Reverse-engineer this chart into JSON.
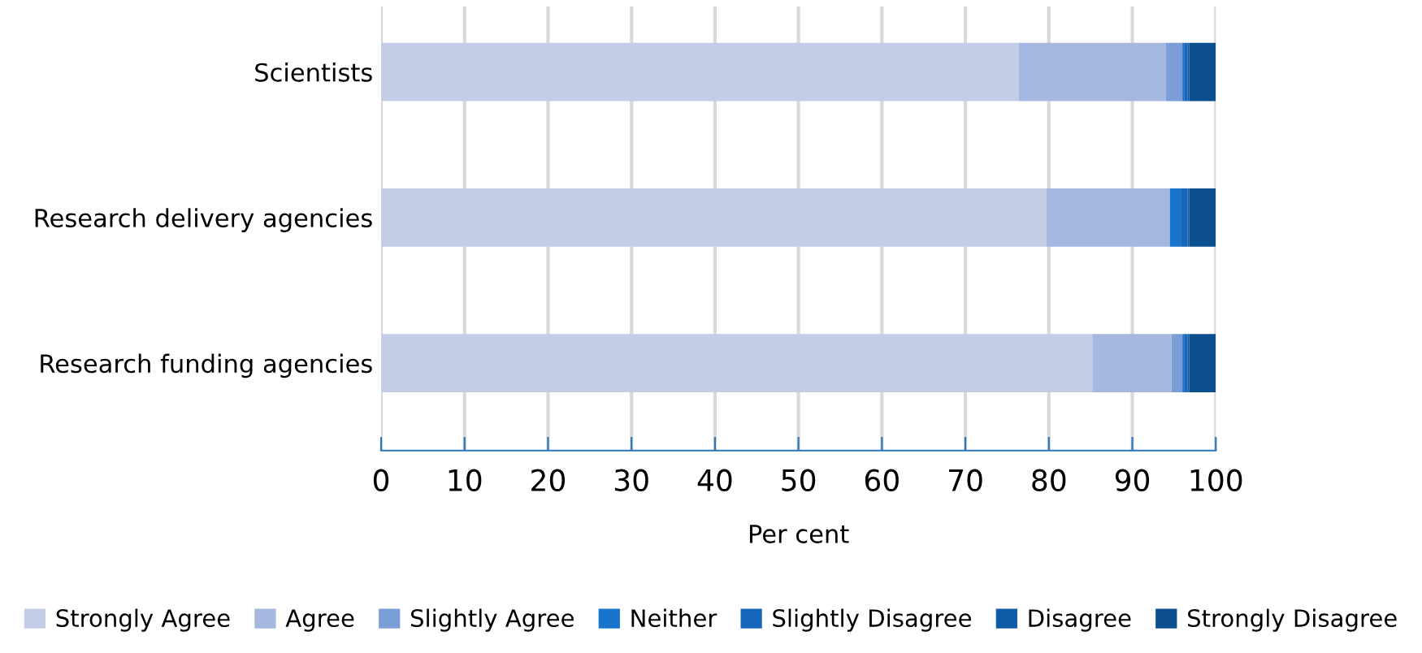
{
  "chart_data": {
    "type": "bar",
    "orientation": "horizontal",
    "stacked": true,
    "xlabel": "Per cent",
    "categories": [
      "Scientists",
      "Research delivery agencies",
      "Research funding agencies"
    ],
    "series": [
      {
        "name": "Strongly Agree",
        "color": "#c3cde6",
        "values": [
          76.4,
          79.7,
          85.2
        ]
      },
      {
        "name": "Agree",
        "color": "#a5b8df",
        "values": [
          17.6,
          14.8,
          9.5
        ]
      },
      {
        "name": "Slightly Agree",
        "color": "#7c9ed6",
        "values": [
          2.0,
          0,
          1.3
        ]
      },
      {
        "name": "Neither",
        "color": "#1874cd",
        "values": [
          0.2,
          1.3,
          0.2
        ]
      },
      {
        "name": "Slightly Disagree",
        "color": "#1666bb",
        "values": [
          0.4,
          0.8,
          0.4
        ]
      },
      {
        "name": "Disagree",
        "color": "#105ca6",
        "values": [
          0.2,
          0.2,
          0.2
        ]
      },
      {
        "name": "Strongly Disagree",
        "color": "#0b4f8f",
        "values": [
          3.2,
          3.2,
          3.2
        ]
      }
    ],
    "xlim": [
      0,
      100
    ],
    "xticks": [
      0,
      10,
      20,
      30,
      40,
      50,
      60,
      70,
      80,
      90,
      100
    ],
    "grid": "x",
    "legend": "bottom"
  }
}
